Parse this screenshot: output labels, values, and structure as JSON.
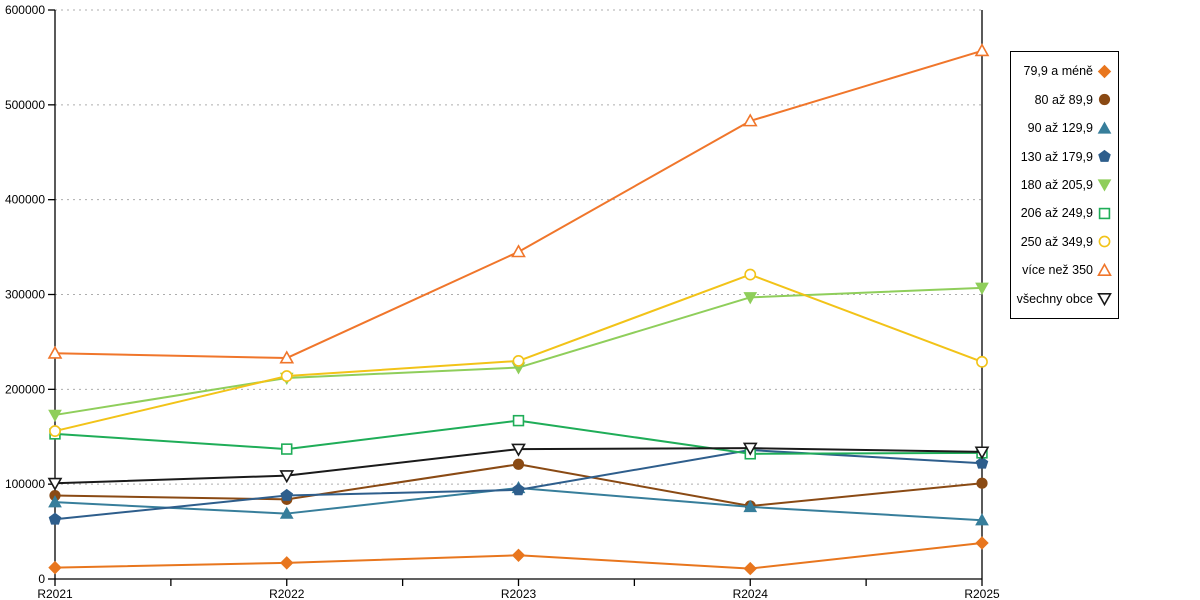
{
  "chart_data": {
    "type": "line",
    "title": "",
    "xlabel": "",
    "ylabel": "",
    "categories": [
      "R2021",
      "R2022",
      "R2023",
      "R2024",
      "R2025"
    ],
    "ylim": [
      0,
      600000
    ],
    "ytick_step": 100000,
    "yticks": [
      "0",
      "100000",
      "200000",
      "300000",
      "400000",
      "500000",
      "600000"
    ],
    "grid": "horizontal-dashed",
    "legend_position": "right",
    "series": [
      {
        "name": "79,9 a méně",
        "color": "#E8761E",
        "marker": "diamond",
        "fill": "filled",
        "values": [
          12000,
          17000,
          25000,
          11000,
          38000
        ]
      },
      {
        "name": "80 až 89,9",
        "color": "#8A4A14",
        "marker": "circle",
        "fill": "filled",
        "values": [
          88000,
          84000,
          121000,
          77000,
          101000
        ]
      },
      {
        "name": "90 až 129,9",
        "color": "#377E9B",
        "marker": "triangle-up",
        "fill": "filled",
        "values": [
          81000,
          69000,
          96000,
          76000,
          62000
        ]
      },
      {
        "name": "130 až 179,9",
        "color": "#2E5E8C",
        "marker": "pentagon",
        "fill": "filled",
        "values": [
          63000,
          88000,
          94000,
          136000,
          122000
        ]
      },
      {
        "name": "180 až 205,9",
        "color": "#8FCE5B",
        "marker": "triangle-down",
        "fill": "filled",
        "values": [
          173000,
          212000,
          223000,
          297000,
          307000
        ]
      },
      {
        "name": "206 až 249,9",
        "color": "#1FAD58",
        "marker": "square",
        "fill": "open",
        "values": [
          153000,
          137000,
          167000,
          132000,
          133000
        ]
      },
      {
        "name": "250 až 349,9",
        "color": "#F2C318",
        "marker": "circle",
        "fill": "open",
        "values": [
          156000,
          214000,
          230000,
          321000,
          229000
        ]
      },
      {
        "name": "více než 350",
        "color": "#F0762B",
        "marker": "triangle-up",
        "fill": "open",
        "values": [
          238000,
          233000,
          345000,
          483000,
          557000
        ]
      },
      {
        "name": "všechny obce",
        "color": "#1A1A1A",
        "marker": "triangle-down",
        "fill": "open",
        "values": [
          101000,
          109000,
          137000,
          138000,
          134000
        ]
      }
    ]
  },
  "colors": {
    "axis": "#000000",
    "gridline": "#ADADAD",
    "background": "#FFFFFF",
    "legend_border": "#000000"
  }
}
